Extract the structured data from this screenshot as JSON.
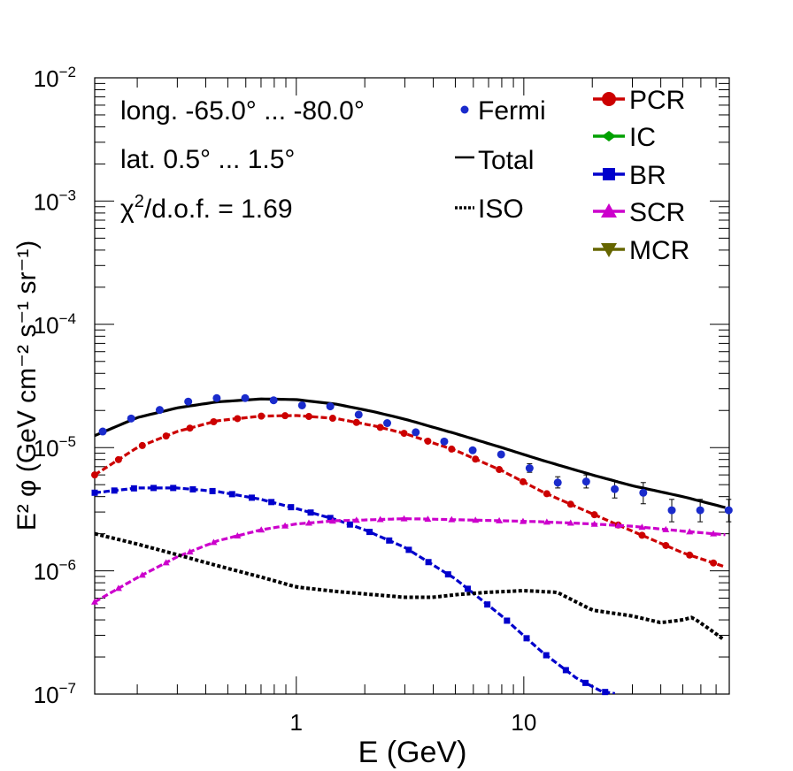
{
  "chart_data": {
    "type": "line",
    "xscale": "log",
    "yscale": "log",
    "xlim": [
      0.13,
      80
    ],
    "ylim": [
      1e-07,
      0.01
    ],
    "xlabel": "E (GeV)",
    "ylabel": "E² φ (GeV cm⁻² s⁻¹ sr⁻¹)",
    "x_tick_labels": [
      {
        "value": 1,
        "label": "1"
      },
      {
        "value": 10,
        "label": "10"
      }
    ],
    "y_tick_labels": [
      {
        "value": 1e-07,
        "base": "10",
        "exp": "−7"
      },
      {
        "value": 1e-06,
        "base": "10",
        "exp": "−6"
      },
      {
        "value": 1e-05,
        "base": "10",
        "exp": "−5"
      },
      {
        "value": 0.0001,
        "base": "10",
        "exp": "−4"
      },
      {
        "value": 0.001,
        "base": "10",
        "exp": "−3"
      },
      {
        "value": 0.01,
        "base": "10",
        "exp": "−2"
      }
    ],
    "annotations": [
      "long. -65.0° ... -80.0°",
      "lat. 0.5° ... 1.5°"
    ],
    "chi2": {
      "chi": "χ",
      "sup": "2",
      "rest": "/d.o.f. = 1.69"
    },
    "legend_left": [
      {
        "label": "Fermi",
        "style": "points"
      },
      {
        "label": "Total",
        "style": "solid"
      },
      {
        "label": "ISO",
        "style": "dotted"
      }
    ],
    "legend_right": [
      {
        "label": "PCR",
        "color": "#cc0000",
        "marker": "circle"
      },
      {
        "label": "IC",
        "color": "#00a000",
        "marker": "diamond"
      },
      {
        "label": "BR",
        "color": "#0000cc",
        "marker": "square"
      },
      {
        "label": "SCR",
        "color": "#cc00cc",
        "marker": "triangle-up"
      },
      {
        "label": "MCR",
        "color": "#666600",
        "marker": "triangle-down"
      }
    ],
    "fermi": {
      "color": "#1a2bcc",
      "x": [
        0.141,
        0.188,
        0.251,
        0.335,
        0.447,
        0.596,
        0.795,
        1.06,
        1.41,
        1.88,
        2.51,
        3.35,
        4.47,
        5.96,
        7.95,
        10.6,
        14.1,
        18.8,
        25.1,
        33.5,
        44.7,
        59.6,
        79.5
      ],
      "y": [
        1.35e-05,
        1.72e-05,
        2.02e-05,
        2.36e-05,
        2.52e-05,
        2.52e-05,
        2.42e-05,
        2.2e-05,
        2.16e-05,
        1.85e-05,
        1.58e-05,
        1.33e-05,
        1.12e-05,
        9.5e-06,
        8.8e-06,
        6.8e-06,
        5.2e-06,
        5.3e-06,
        4.6e-06,
        4.3e-06,
        3.1e-06,
        3.1e-06,
        3.1e-06
      ],
      "err_lo": [
        1.3e-05,
        1.7e-05,
        2e-05,
        2.35e-05,
        2.5e-05,
        2.5e-05,
        2.4e-05,
        2.18e-05,
        2.14e-05,
        1.83e-05,
        1.55e-05,
        1.3e-05,
        1.09e-05,
        9.2e-06,
        8.3e-06,
        6.3e-06,
        4.7e-06,
        4.7e-06,
        3.9e-06,
        3.5e-06,
        2.5e-06,
        2.5e-06,
        2.5e-06
      ],
      "err_hi": [
        1.4e-05,
        1.75e-05,
        2.05e-05,
        2.38e-05,
        2.55e-05,
        2.55e-05,
        2.45e-05,
        2.23e-05,
        2.19e-05,
        1.88e-05,
        1.61e-05,
        1.36e-05,
        1.15e-05,
        9.8e-06,
        9.4e-06,
        7.4e-06,
        5.8e-06,
        6e-06,
        5.4e-06,
        5.2e-06,
        3.8e-06,
        3.8e-06,
        3.8e-06
      ]
    },
    "series": [
      {
        "name": "Total",
        "color": "#000000",
        "style": "solid",
        "x": [
          0.13,
          0.2,
          0.3,
          0.45,
          0.7,
          1.0,
          1.5,
          2.2,
          3.0,
          5.0,
          8.0,
          12,
          20,
          30,
          50,
          80
        ],
        "y": [
          1.25e-05,
          1.75e-05,
          2.1e-05,
          2.35e-05,
          2.48e-05,
          2.45e-05,
          2.25e-05,
          1.95e-05,
          1.7e-05,
          1.3e-05,
          1e-05,
          7.9e-06,
          6e-06,
          4.9e-06,
          4e-06,
          3.2e-06
        ]
      },
      {
        "name": "PCR",
        "color": "#cc0000",
        "style": "marked-dashed",
        "x": [
          0.13,
          0.2,
          0.3,
          0.45,
          0.7,
          1.0,
          1.5,
          2.2,
          3.0,
          5.0,
          8.0,
          12,
          20,
          30,
          50,
          80
        ],
        "y": [
          6e-06,
          1e-05,
          1.35e-05,
          1.65e-05,
          1.8e-05,
          1.82e-05,
          1.72e-05,
          1.5e-05,
          1.3e-05,
          9.5e-06,
          6.5e-06,
          4.4e-06,
          2.9e-06,
          2.1e-06,
          1.4e-06,
          1.05e-06
        ]
      },
      {
        "name": "BR",
        "color": "#0000cc",
        "style": "marked-dashed",
        "x": [
          0.13,
          0.2,
          0.3,
          0.45,
          0.7,
          1.0,
          1.5,
          2.0,
          3.0,
          5.0,
          8.0,
          12,
          17,
          22,
          26
        ],
        "y": [
          4.3e-06,
          4.7e-06,
          4.7e-06,
          4.4e-06,
          3.8e-06,
          3.2e-06,
          2.6e-06,
          2.15e-06,
          1.55e-06,
          8.6e-07,
          4.3e-07,
          2.2e-07,
          1.35e-07,
          1.05e-07,
          1e-07
        ]
      },
      {
        "name": "SCR",
        "color": "#cc00cc",
        "style": "marked-dashed",
        "x": [
          0.13,
          0.2,
          0.3,
          0.45,
          0.7,
          1.0,
          1.5,
          2.2,
          3.0,
          5.0,
          8.0,
          12,
          20,
          30,
          50,
          80
        ],
        "y": [
          5.6e-07,
          8.8e-07,
          1.3e-06,
          1.75e-06,
          2.15e-06,
          2.4e-06,
          2.55e-06,
          2.6e-06,
          2.65e-06,
          2.6e-06,
          2.55e-06,
          2.5e-06,
          2.4e-06,
          2.3e-06,
          2.1e-06,
          1.95e-06
        ]
      },
      {
        "name": "ISO",
        "color": "#000000",
        "style": "dotted",
        "x": [
          0.13,
          0.2,
          0.3,
          0.45,
          0.7,
          1.0,
          1.5,
          2.2,
          3.0,
          4.0,
          5.0,
          7.0,
          10,
          14,
          20,
          30,
          40,
          50,
          55,
          65,
          75
        ],
        "y": [
          2e-06,
          1.65e-06,
          1.35e-06,
          1.1e-06,
          8.9e-07,
          7.4e-07,
          6.8e-07,
          6.4e-07,
          6.1e-07,
          6.1e-07,
          6.4e-07,
          6.7e-07,
          6.9e-07,
          6.7e-07,
          4.8e-07,
          4.3e-07,
          3.8e-07,
          4e-07,
          4.2e-07,
          3.4e-07,
          2.8e-07
        ]
      }
    ]
  }
}
